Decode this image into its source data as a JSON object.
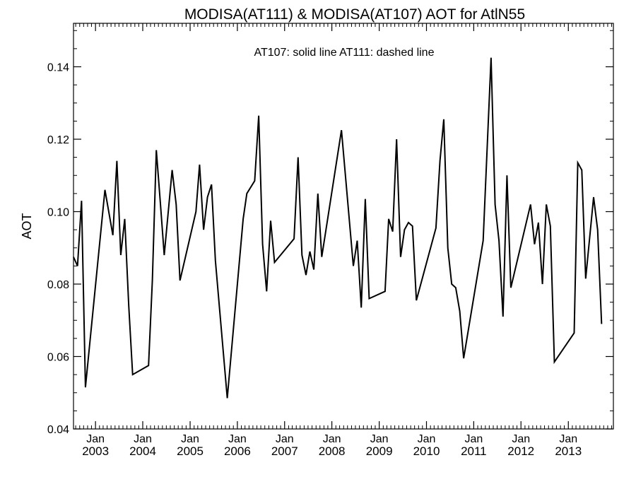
{
  "chart_data": {
    "type": "line",
    "title": "MODISA(AT111) & MODISA(AT107)  AOT for AtlN55",
    "ylabel": "AOT",
    "xlabel": "",
    "annotation": "AT107: solid line   AT111: dashed line",
    "ylim": [
      0.04,
      0.152
    ],
    "xlim": [
      "2002-07-15",
      "2013-12-15"
    ],
    "yticks": [
      0.04,
      0.06,
      0.08,
      0.1,
      0.12,
      0.14
    ],
    "ytick_labels": [
      "0.04",
      "0.06",
      "0.08",
      "0.10",
      "0.12",
      "0.14"
    ],
    "xticks": [
      {
        "date": "2003-01-01",
        "month": "Jan",
        "year": "2003"
      },
      {
        "date": "2004-01-01",
        "month": "Jan",
        "year": "2004"
      },
      {
        "date": "2005-01-01",
        "month": "Jan",
        "year": "2005"
      },
      {
        "date": "2006-01-01",
        "month": "Jan",
        "year": "2006"
      },
      {
        "date": "2007-01-01",
        "month": "Jan",
        "year": "2007"
      },
      {
        "date": "2008-01-01",
        "month": "Jan",
        "year": "2008"
      },
      {
        "date": "2009-01-01",
        "month": "Jan",
        "year": "2009"
      },
      {
        "date": "2010-01-01",
        "month": "Jan",
        "year": "2010"
      },
      {
        "date": "2011-01-01",
        "month": "Jan",
        "year": "2011"
      },
      {
        "date": "2012-01-01",
        "month": "Jan",
        "year": "2012"
      },
      {
        "date": "2013-01-01",
        "month": "Jan",
        "year": "2013"
      }
    ],
    "grid": false,
    "line_color": "#000000",
    "series": [
      {
        "name": "AT107",
        "style": "solid",
        "points": [
          [
            "2002-07-15",
            0.0875
          ],
          [
            "2002-08-15",
            0.085
          ],
          [
            "2002-09-15",
            0.103
          ],
          [
            "2002-10-15",
            0.0515
          ],
          [
            "2003-03-15",
            0.106
          ],
          [
            "2003-05-15",
            0.0935
          ],
          [
            "2003-06-15",
            0.114
          ],
          [
            "2003-07-15",
            0.088
          ],
          [
            "2003-08-15",
            0.098
          ],
          [
            "2003-09-15",
            0.074
          ],
          [
            "2003-10-15",
            0.055
          ],
          [
            "2004-02-15",
            0.0575
          ],
          [
            "2004-03-15",
            0.081
          ],
          [
            "2004-04-15",
            0.117
          ],
          [
            "2004-05-15",
            0.103
          ],
          [
            "2004-06-15",
            0.088
          ],
          [
            "2004-08-15",
            0.1115
          ],
          [
            "2004-09-15",
            0.102
          ],
          [
            "2004-10-15",
            0.081
          ],
          [
            "2005-02-15",
            0.1
          ],
          [
            "2005-03-15",
            0.113
          ],
          [
            "2005-04-15",
            0.095
          ],
          [
            "2005-05-15",
            0.104
          ],
          [
            "2005-06-15",
            0.1075
          ],
          [
            "2005-07-15",
            0.0865
          ],
          [
            "2005-10-15",
            0.0485
          ],
          [
            "2006-02-15",
            0.098
          ],
          [
            "2006-03-15",
            0.105
          ],
          [
            "2006-05-15",
            0.1085
          ],
          [
            "2006-06-15",
            0.1265
          ],
          [
            "2006-07-15",
            0.091
          ],
          [
            "2006-08-15",
            0.078
          ],
          [
            "2006-09-15",
            0.0975
          ],
          [
            "2006-10-15",
            0.086
          ],
          [
            "2007-03-15",
            0.0925
          ],
          [
            "2007-04-15",
            0.115
          ],
          [
            "2007-05-15",
            0.088
          ],
          [
            "2007-06-15",
            0.0825
          ],
          [
            "2007-07-15",
            0.089
          ],
          [
            "2007-08-15",
            0.084
          ],
          [
            "2007-09-15",
            0.105
          ],
          [
            "2007-10-15",
            0.0875
          ],
          [
            "2008-03-15",
            0.1225
          ],
          [
            "2008-06-15",
            0.085
          ],
          [
            "2008-07-15",
            0.092
          ],
          [
            "2008-08-15",
            0.0735
          ],
          [
            "2008-09-15",
            0.1035
          ],
          [
            "2008-10-15",
            0.076
          ],
          [
            "2009-02-15",
            0.078
          ],
          [
            "2009-03-15",
            0.098
          ],
          [
            "2009-04-15",
            0.0945
          ],
          [
            "2009-05-15",
            0.12
          ],
          [
            "2009-06-15",
            0.0875
          ],
          [
            "2009-07-15",
            0.095
          ],
          [
            "2009-08-15",
            0.097
          ],
          [
            "2009-09-15",
            0.096
          ],
          [
            "2009-10-15",
            0.0755
          ],
          [
            "2010-03-15",
            0.0955
          ],
          [
            "2010-04-15",
            0.114
          ],
          [
            "2010-05-15",
            0.1255
          ],
          [
            "2010-06-15",
            0.09
          ],
          [
            "2010-07-15",
            0.08
          ],
          [
            "2010-08-15",
            0.079
          ],
          [
            "2010-09-15",
            0.0725
          ],
          [
            "2010-10-15",
            0.0595
          ],
          [
            "2011-03-15",
            0.092
          ],
          [
            "2011-05-15",
            0.1425
          ],
          [
            "2011-06-15",
            0.102
          ],
          [
            "2011-07-15",
            0.092
          ],
          [
            "2011-08-15",
            0.071
          ],
          [
            "2011-09-15",
            0.11
          ],
          [
            "2011-10-15",
            0.079
          ],
          [
            "2012-03-15",
            0.102
          ],
          [
            "2012-04-15",
            0.091
          ],
          [
            "2012-05-15",
            0.097
          ],
          [
            "2012-06-15",
            0.08
          ],
          [
            "2012-07-15",
            0.102
          ],
          [
            "2012-08-15",
            0.096
          ],
          [
            "2012-09-15",
            0.0585
          ],
          [
            "2013-02-15",
            0.0665
          ],
          [
            "2013-03-15",
            0.1135
          ],
          [
            "2013-04-15",
            0.1115
          ],
          [
            "2013-05-15",
            0.0815
          ],
          [
            "2013-07-15",
            0.104
          ],
          [
            "2013-08-15",
            0.095
          ],
          [
            "2013-09-15",
            0.069
          ]
        ]
      }
    ]
  }
}
